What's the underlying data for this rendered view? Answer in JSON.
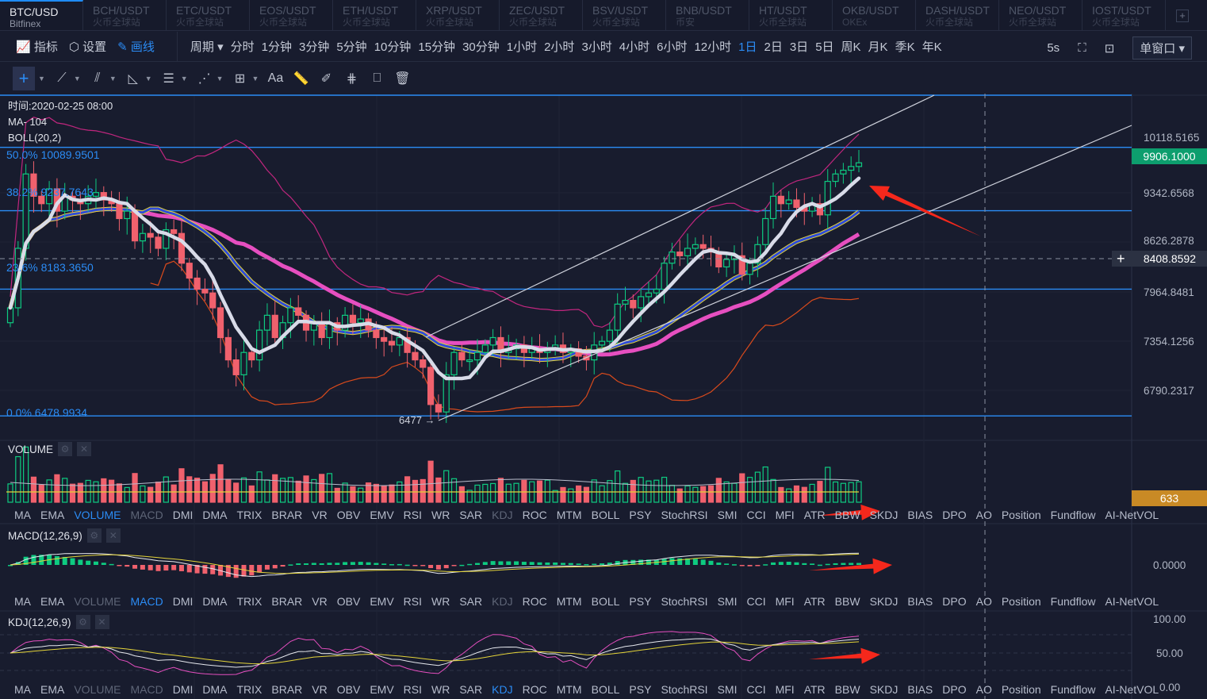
{
  "tabs": [
    {
      "symbol": "BTC/USD",
      "exchange": "Bitfinex"
    },
    {
      "symbol": "BCH/USDT",
      "exchange": "火币全球站"
    },
    {
      "symbol": "ETC/USDT",
      "exchange": "火币全球站"
    },
    {
      "symbol": "EOS/USDT",
      "exchange": "火币全球站"
    },
    {
      "symbol": "ETH/USDT",
      "exchange": "火币全球站"
    },
    {
      "symbol": "XRP/USDT",
      "exchange": "火币全球站"
    },
    {
      "symbol": "ZEC/USDT",
      "exchange": "火币全球站"
    },
    {
      "symbol": "BSV/USDT",
      "exchange": "火币全球站"
    },
    {
      "symbol": "BNB/USDT",
      "exchange": "币安"
    },
    {
      "symbol": "HT/USDT",
      "exchange": "火币全球站"
    },
    {
      "symbol": "OKB/USDT",
      "exchange": "OKEx"
    },
    {
      "symbol": "DASH/USDT",
      "exchange": "火币全球站"
    },
    {
      "symbol": "NEO/USDT",
      "exchange": "火币全球站"
    },
    {
      "symbol": "IOST/USDT",
      "exchange": "火币全球站"
    }
  ],
  "add_tab": "+",
  "toolbar": {
    "indicators": "指标",
    "settings": "设置",
    "draw": "画线",
    "period": "周期",
    "periods": [
      "分时",
      "1分钟",
      "3分钟",
      "5分钟",
      "10分钟",
      "15分钟",
      "30分钟",
      "1小时",
      "2小时",
      "3小时",
      "4小时",
      "6小时",
      "12小时",
      "1日",
      "2日",
      "3日",
      "5日",
      "周K",
      "月K",
      "季K",
      "年K"
    ],
    "active_period": "1日",
    "refresh": "5s",
    "window": "单窗口"
  },
  "drawing_tools": {
    "text": "Aa"
  },
  "main": {
    "time": "时间:2020-02-25 08:00",
    "ma": "MA- 104",
    "boll": "BOLL(20,2)",
    "fib": [
      {
        "label": "50.0% 10089.9501",
        "price": 10089.9501
      },
      {
        "label": "38.2% 9237.7643",
        "price": 9237.7643
      },
      {
        "label": "23.6% 8183.3650",
        "price": 8183.365
      },
      {
        "label": "0.0% 6478.9934",
        "price": 6478.9934
      }
    ],
    "low_marker": "6477 →",
    "axis": [
      "10118.5165",
      "9342.6568",
      "8626.2878",
      "7964.8481",
      "7354.1256",
      "6790.2317"
    ],
    "last_price": "9906.1000",
    "crosshair_price": "8408.8592",
    "crosshair_plus": "+"
  },
  "volume": {
    "title": "VOLUME",
    "last": "633"
  },
  "macd": {
    "title": "MACD(12,26,9)",
    "axis": "0.0000"
  },
  "kdj": {
    "title": "KDJ(12,26,9)",
    "axis": [
      "100.00",
      "50.00",
      "0.00"
    ]
  },
  "indicators": [
    "MA",
    "EMA",
    "VOLUME",
    "MACD",
    "DMI",
    "DMA",
    "TRIX",
    "BRAR",
    "VR",
    "OBV",
    "EMV",
    "RSI",
    "WR",
    "SAR",
    "KDJ",
    "ROC",
    "MTM",
    "BOLL",
    "PSY",
    "StochRSI",
    "SMI",
    "CCI",
    "MFI",
    "ATR",
    "BBW",
    "SKDJ",
    "BIAS",
    "DPO",
    "AO",
    "Position",
    "Fundflow",
    "AI-NetVOL"
  ],
  "colors": {
    "up": "#0ecb81",
    "down": "#f0616d",
    "accent": "#2b8cf5",
    "ma_white": "#d8dbe8",
    "ma_blue": "#2e4bd8",
    "ma_pink": "#e64fc0"
  },
  "chart_data": {
    "type": "candlestick",
    "closes": [
      7900,
      8700,
      9700,
      9400,
      9300,
      9500,
      9200,
      9400,
      9350,
      9300,
      9400,
      9450,
      9350,
      9300,
      9100,
      9200,
      8800,
      8900,
      8850,
      8700,
      8950,
      8900,
      8500,
      8300,
      8150,
      8100,
      7900,
      7500,
      7200,
      7000,
      7300,
      7200,
      7600,
      7800,
      7500,
      7700,
      7900,
      7800,
      7600,
      7700,
      7500,
      7700,
      7600,
      7800,
      7700,
      7750,
      7600,
      7500,
      7450,
      7400,
      7500,
      7300,
      7200,
      7100,
      6600,
      6500,
      7000,
      7300,
      7200,
      7200,
      7300,
      7400,
      7500,
      7300,
      7350,
      7400,
      7300,
      7350,
      7300,
      7350,
      7400,
      7300,
      7350,
      7250,
      7200,
      7400,
      7450,
      7600,
      7950,
      8000,
      7900,
      8050,
      8100,
      8150,
      8500,
      8650,
      8600,
      8700,
      8750,
      8700,
      8650,
      8450,
      8550,
      8600,
      8350,
      8500,
      8750,
      9100,
      9400,
      9300,
      9350,
      9250,
      9200,
      9300,
      9150,
      9600,
      9700,
      9750,
      9800,
      9850
    ]
  }
}
